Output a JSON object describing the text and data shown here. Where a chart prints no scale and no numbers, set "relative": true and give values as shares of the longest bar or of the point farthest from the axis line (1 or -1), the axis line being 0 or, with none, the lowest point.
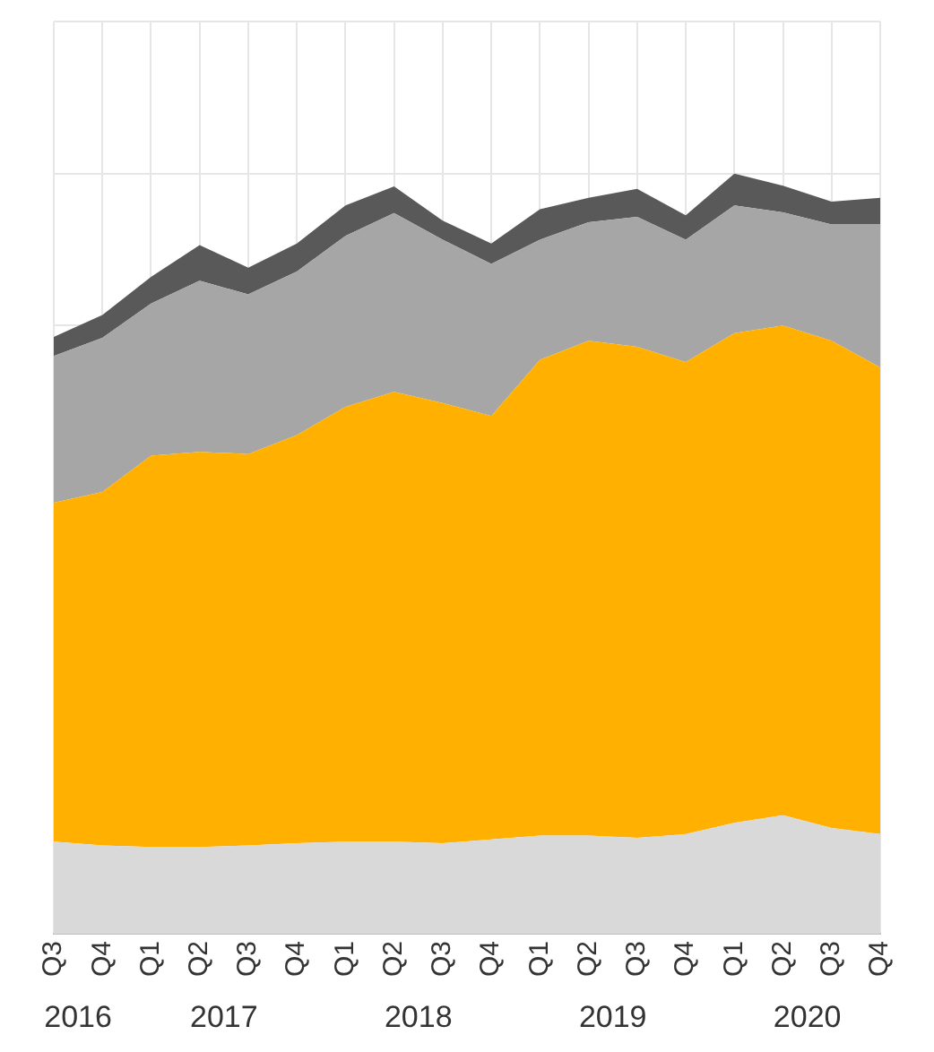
{
  "chart_data": {
    "type": "area",
    "relative": true,
    "stacked": true,
    "grid": true,
    "categories": [
      "Q3",
      "Q4",
      "Q1",
      "Q2",
      "Q3",
      "Q4",
      "Q1",
      "Q2",
      "Q3",
      "Q4",
      "Q1",
      "Q2",
      "Q3",
      "Q4",
      "Q1",
      "Q2",
      "Q3",
      "Q4"
    ],
    "series": [
      {
        "color": "#d9d9d9",
        "values": [
          0.121,
          0.116,
          0.114,
          0.114,
          0.116,
          0.119,
          0.121,
          0.121,
          0.119,
          0.124,
          0.129,
          0.129,
          0.126,
          0.131,
          0.146,
          0.156,
          0.139,
          0.131
        ]
      },
      {
        "color": "#ffb000",
        "values": [
          0.446,
          0.465,
          0.515,
          0.52,
          0.515,
          0.537,
          0.572,
          0.592,
          0.579,
          0.557,
          0.626,
          0.651,
          0.646,
          0.621,
          0.644,
          0.644,
          0.641,
          0.614
        ]
      },
      {
        "color": "#a6a6a6",
        "values": [
          0.193,
          0.203,
          0.2,
          0.225,
          0.21,
          0.215,
          0.225,
          0.235,
          0.215,
          0.2,
          0.158,
          0.156,
          0.171,
          0.161,
          0.168,
          0.149,
          0.153,
          0.188
        ]
      },
      {
        "color": "#595959",
        "values": [
          0.025,
          0.03,
          0.035,
          0.047,
          0.035,
          0.037,
          0.04,
          0.035,
          0.025,
          0.027,
          0.04,
          0.032,
          0.037,
          0.032,
          0.042,
          0.035,
          0.03,
          0.035
        ]
      }
    ],
    "annotations": [
      "2016",
      "2017",
      "2018",
      "2019",
      "2020"
    ]
  }
}
